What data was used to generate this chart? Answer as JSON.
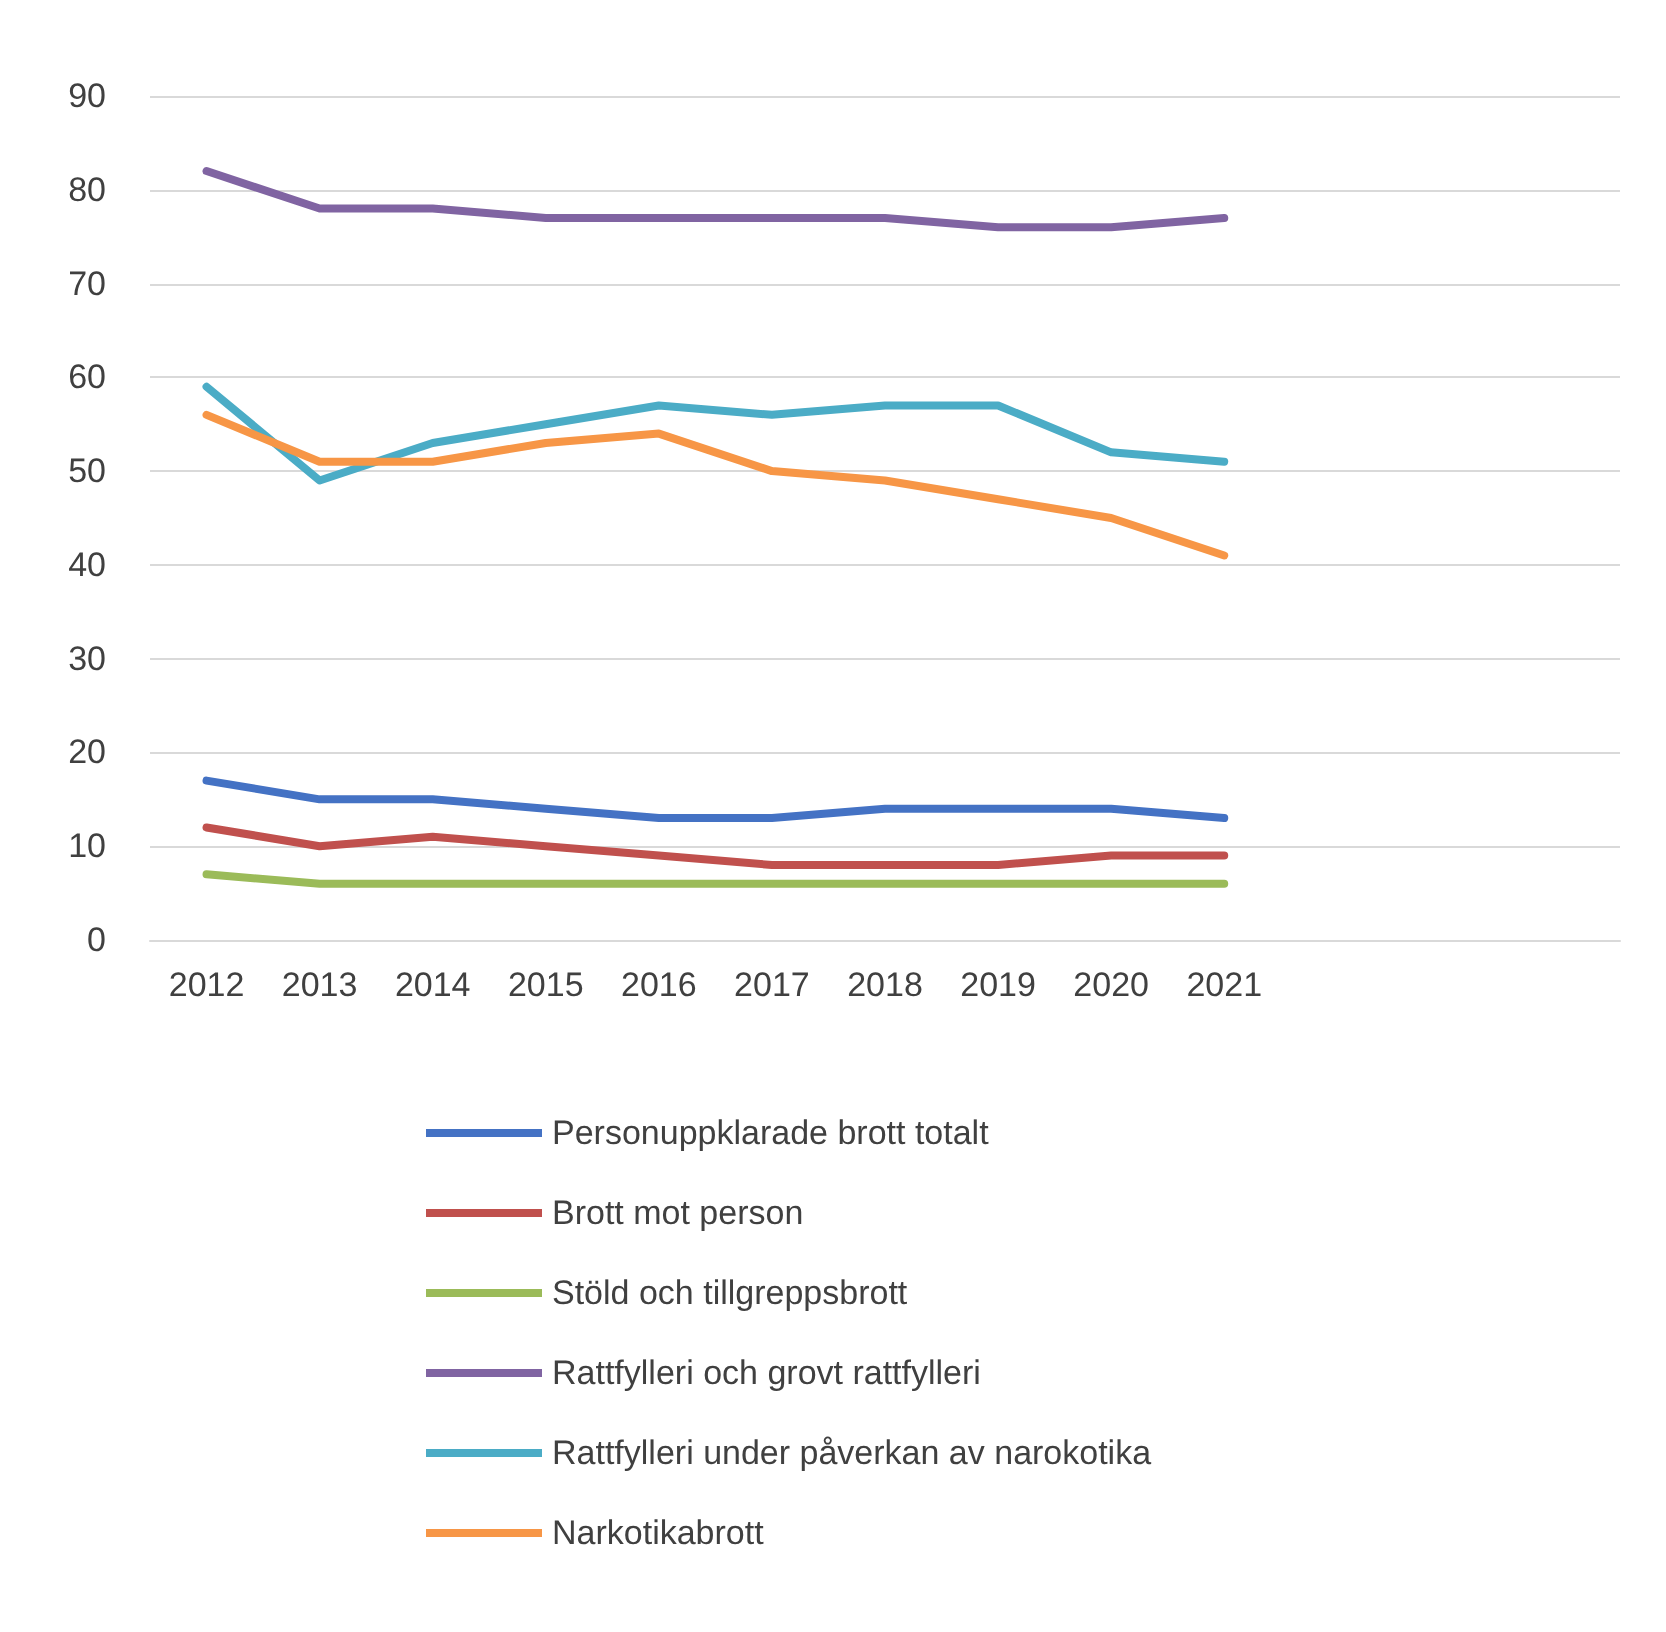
{
  "chart_data": {
    "type": "line",
    "categories": [
      "2012",
      "2013",
      "2014",
      "2015",
      "2016",
      "2017",
      "2018",
      "2019",
      "2020",
      "2021",
      null,
      null,
      null
    ],
    "series": [
      {
        "name": "Personuppklarade brott totalt",
        "color": "#4472c4",
        "values": [
          17,
          15,
          15,
          14,
          13,
          13,
          14,
          14,
          14,
          13,
          null,
          null,
          null
        ]
      },
      {
        "name": "Brott mot person",
        "color": "#c0504d",
        "values": [
          12,
          10,
          11,
          10,
          9,
          8,
          8,
          8,
          9,
          9,
          null,
          null,
          null
        ]
      },
      {
        "name": "Stöld och tillgreppsbrott",
        "color": "#9bbb59",
        "values": [
          7,
          6,
          6,
          6,
          6,
          6,
          6,
          6,
          6,
          6,
          null,
          null,
          null
        ]
      },
      {
        "name": "Rattfylleri och grovt rattfylleri",
        "color": "#8064a2",
        "values": [
          82,
          78,
          78,
          77,
          77,
          77,
          77,
          76,
          76,
          77,
          null,
          null,
          null
        ]
      },
      {
        "name": "Rattfylleri under påverkan av narokotika",
        "color": "#4bacc6",
        "values": [
          59,
          49,
          53,
          55,
          57,
          56,
          57,
          57,
          52,
          51,
          null,
          null,
          null
        ]
      },
      {
        "name": "Narkotikabrott",
        "color": "#f79646",
        "values": [
          56,
          51,
          51,
          53,
          54,
          50,
          49,
          47,
          45,
          41,
          null,
          null,
          null
        ]
      }
    ],
    "ylim": [
      0,
      90
    ],
    "yticks": [
      0,
      10,
      20,
      30,
      40,
      50,
      60,
      70,
      80,
      90
    ],
    "grid": "y",
    "legend": "bottom",
    "marker": "none",
    "line_style": "solid"
  }
}
